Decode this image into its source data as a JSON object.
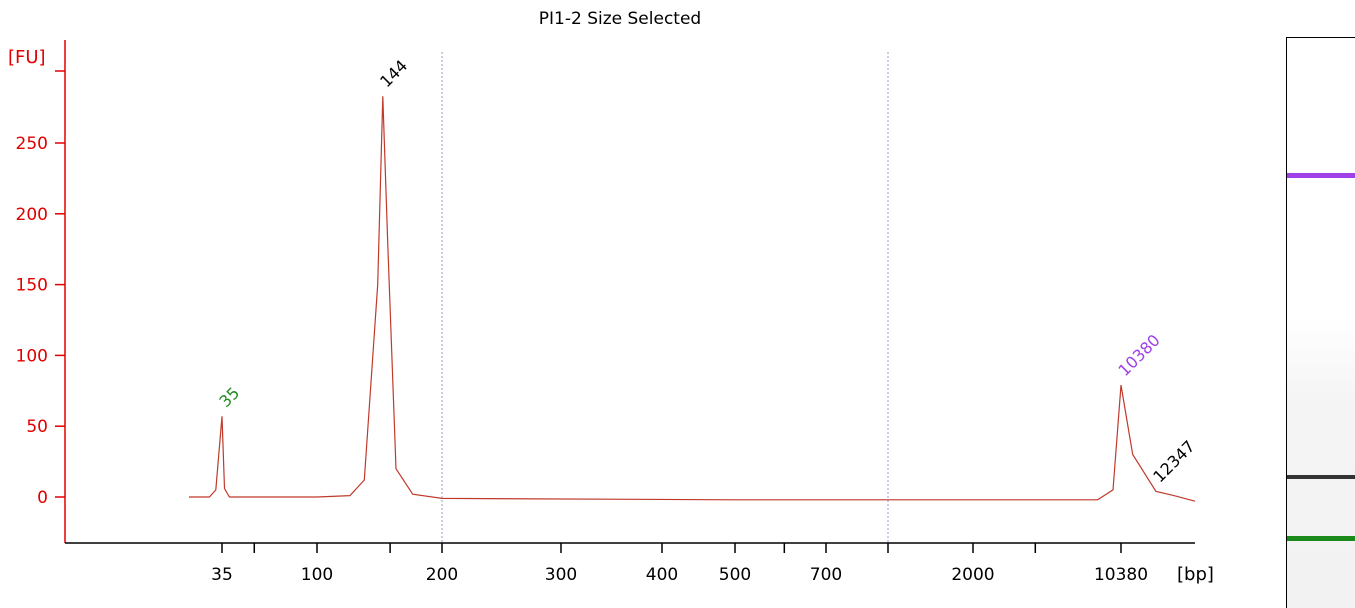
{
  "chart_data": {
    "type": "line",
    "title": "PI1-2 Size Selected",
    "ylabel": "[FU]",
    "xlabel": "[bp]",
    "ylim": [
      -30,
      300
    ],
    "yticks": [
      0,
      50,
      100,
      150,
      200,
      250
    ],
    "ytick_labels": [
      "0",
      "50",
      "100",
      "150",
      "200",
      "250"
    ],
    "xticks": [
      "35",
      "100",
      "200",
      "300",
      "400",
      "500",
      "700",
      "2000",
      "10380"
    ],
    "grid": "vertical dotted lines at 200 and 1000 bp",
    "series": [
      {
        "x": [
          30,
          33,
          34,
          35,
          36,
          38,
          100,
          120,
          130,
          140,
          144,
          148,
          155,
          170,
          200,
          500,
          1000,
          5000,
          8000,
          9500,
          10380,
          11000,
          12347,
          13500,
          15000
        ],
        "values": [
          0,
          0,
          5,
          57,
          6,
          0,
          0,
          1,
          12,
          150,
          283,
          180,
          20,
          2,
          -1,
          -2,
          -2,
          -2,
          -2,
          5,
          79,
          30,
          4,
          1,
          -3
        ]
      }
    ],
    "peaks": [
      {
        "label": "35",
        "size_bp": 35,
        "height_fu": 57,
        "color": "#228b22"
      },
      {
        "label": "144",
        "size_bp": 144,
        "height_fu": 283,
        "color": "#000000"
      },
      {
        "label": "10380",
        "size_bp": 10380,
        "height_fu": 79,
        "color": "#a040e8"
      },
      {
        "label": "12347",
        "size_bp": 12347,
        "height_fu": 4,
        "color": "#000000"
      }
    ],
    "colors": {
      "axis": "#e00000",
      "trace": "#c0392b",
      "grid": "#9999cc"
    }
  },
  "gel": {
    "bands": [
      {
        "name": "upper-marker",
        "color": "#a040e8"
      },
      {
        "name": "sample",
        "color": "#333333"
      },
      {
        "name": "lower-marker",
        "color": "#1a8a1a"
      }
    ]
  }
}
